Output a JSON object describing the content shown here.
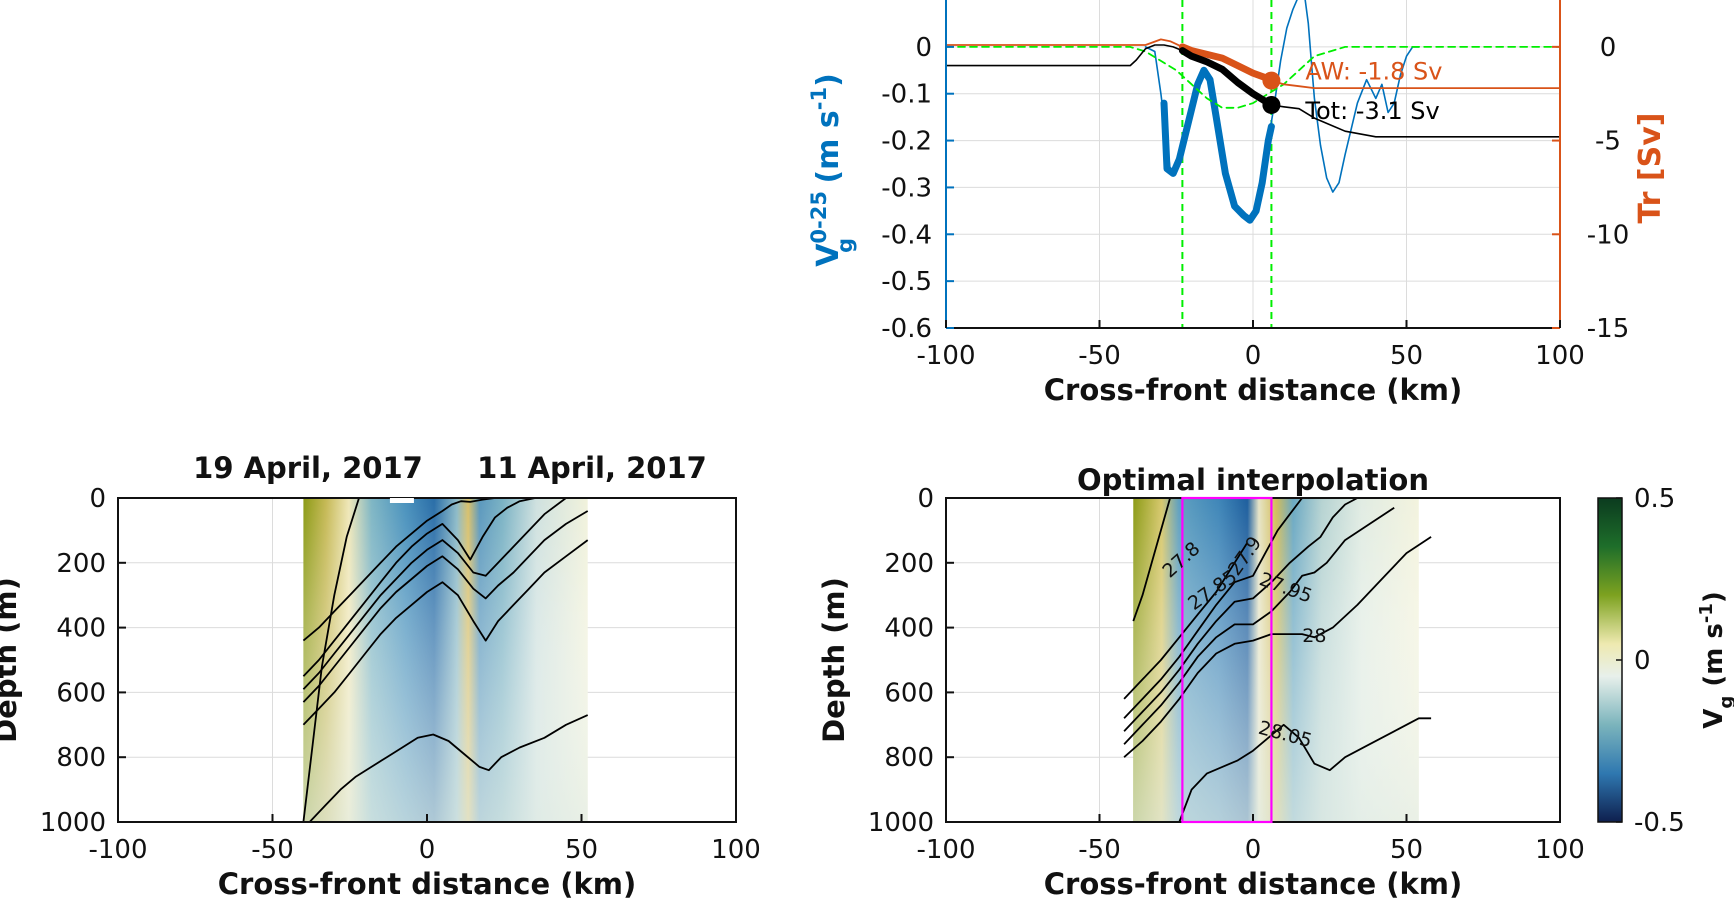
{
  "colors": {
    "blue": "#0072bd",
    "orange": "#d95319",
    "green": "#00ee00",
    "magenta": "#ff00ff",
    "black": "#000000",
    "grid": "#dcdcdc"
  },
  "chart_data": [
    {
      "id": "top",
      "type": "line",
      "xlabel": "Cross-front distance (km)",
      "ylabel_left": "V",
      "ylabel_left_sup": "0-25",
      "ylabel_left_sub": "g",
      "ylabel_left_units": "(m s",
      "ylabel_left_units_sup": "-1",
      "ylabel_left_units_end": ")",
      "ylabel_right": "Tr [Sv]",
      "xlim": [
        -100,
        100
      ],
      "ylim_left": [
        -0.6,
        0.1
      ],
      "ylim_right": [
        -15,
        2.5
      ],
      "xticks": [
        "-100",
        "-50",
        "0",
        "50",
        "100"
      ],
      "yticks_left": [
        "0",
        "-0.1",
        "-0.2",
        "-0.3",
        "-0.4",
        "-0.5",
        "-0.6"
      ],
      "yticks_right": [
        "0",
        "-5",
        "-10",
        "-15"
      ],
      "grid": true,
      "vlines": [
        -23,
        6
      ],
      "series": [
        {
          "axis": "left",
          "style": "thin-blue",
          "x": [
            -35,
            -32,
            -30,
            -27,
            -26,
            -24,
            -21,
            -18,
            -16,
            -14,
            -12,
            -9,
            -6,
            -3,
            -1,
            1,
            3,
            5,
            7,
            9,
            11,
            13,
            15,
            16,
            17,
            18,
            19,
            20,
            22,
            24,
            26,
            28,
            30,
            34,
            37,
            40,
            42,
            44,
            46,
            48,
            50,
            52,
            54
          ],
          "y": [
            0.0,
            -0.01,
            -0.1,
            -0.26,
            -0.27,
            -0.24,
            -0.16,
            -0.08,
            -0.05,
            -0.07,
            -0.15,
            -0.27,
            -0.34,
            -0.36,
            -0.37,
            -0.35,
            -0.29,
            -0.2,
            -0.12,
            -0.03,
            0.04,
            0.08,
            0.11,
            0.12,
            0.1,
            0.05,
            -0.03,
            -0.11,
            -0.21,
            -0.28,
            -0.31,
            -0.29,
            -0.23,
            -0.12,
            -0.07,
            -0.11,
            -0.08,
            -0.14,
            -0.12,
            -0.06,
            -0.02,
            0.0,
            0.0
          ]
        },
        {
          "axis": "left",
          "style": "thick-blue",
          "x": [
            -29,
            -28,
            -26,
            -24,
            -21,
            -18,
            -16,
            -14,
            -12,
            -9,
            -6,
            -3,
            -1,
            1,
            3,
            5,
            6
          ],
          "y": [
            -0.12,
            -0.26,
            -0.27,
            -0.24,
            -0.16,
            -0.08,
            -0.05,
            -0.07,
            -0.15,
            -0.27,
            -0.34,
            -0.36,
            -0.37,
            -0.35,
            -0.29,
            -0.2,
            -0.17
          ]
        },
        {
          "axis": "left",
          "style": "dashed-green",
          "x": [
            -100,
            -40,
            -35,
            -30,
            -25,
            -20,
            -15,
            -10,
            -5,
            0,
            5,
            10,
            15,
            20,
            25,
            30,
            40,
            100
          ],
          "y": [
            0.0,
            0.0,
            -0.01,
            -0.03,
            -0.05,
            -0.08,
            -0.11,
            -0.13,
            -0.13,
            -0.12,
            -0.1,
            -0.08,
            -0.05,
            -0.02,
            -0.01,
            0.0,
            0.0,
            0.0
          ]
        },
        {
          "axis": "right",
          "style": "thin-orange",
          "x": [
            -100,
            -40,
            -35,
            -30,
            -27,
            -23,
            -20,
            -15,
            -10,
            -5,
            0,
            5,
            6,
            8,
            10,
            15,
            20,
            30,
            50,
            100
          ],
          "y": [
            0.1,
            0.1,
            0.1,
            0.4,
            0.3,
            0.0,
            -0.2,
            -0.4,
            -0.6,
            -1.0,
            -1.4,
            -1.7,
            -1.8,
            -1.9,
            -2.0,
            -2.1,
            -2.2,
            -2.2,
            -2.2,
            -2.2
          ]
        },
        {
          "axis": "right",
          "style": "thick-orange",
          "x": [
            -23,
            -20,
            -15,
            -10,
            -5,
            0,
            5,
            6
          ],
          "y": [
            0.0,
            -0.2,
            -0.4,
            -0.6,
            -1.0,
            -1.4,
            -1.7,
            -1.8
          ]
        },
        {
          "axis": "right",
          "style": "thin-black",
          "x": [
            -100,
            -40,
            -38,
            -35,
            -32,
            -29,
            -26,
            -23,
            -20,
            -15,
            -10,
            -5,
            0,
            5,
            6,
            10,
            15,
            20,
            30,
            40,
            50,
            100
          ],
          "y": [
            -1.0,
            -1.0,
            -0.7,
            -0.1,
            0.1,
            0.1,
            0.0,
            -0.2,
            -0.5,
            -0.8,
            -1.2,
            -1.9,
            -2.5,
            -3.0,
            -3.1,
            -3.2,
            -3.3,
            -3.8,
            -4.5,
            -4.8,
            -4.8,
            -4.8
          ]
        },
        {
          "axis": "right",
          "style": "thick-black",
          "x": [
            -23,
            -20,
            -15,
            -10,
            -5,
            0,
            5,
            6
          ],
          "y": [
            -0.2,
            -0.5,
            -0.8,
            -1.2,
            -1.9,
            -2.5,
            -3.0,
            -3.1
          ]
        }
      ],
      "markers": [
        {
          "axis": "right",
          "x": 6,
          "y": -1.8,
          "color": "orange",
          "label": "AW: -1.8 Sv"
        },
        {
          "axis": "right",
          "x": 6,
          "y": -3.1,
          "color": "black",
          "label": "Tot: -3.1 Sv"
        }
      ]
    },
    {
      "id": "bottom-left",
      "type": "heatmap",
      "title_left": "19 April, 2017",
      "title_right": "11 April, 2017",
      "xlabel": "Cross-front distance (km)",
      "ylabel": "Depth (m)",
      "xlim": [
        -100,
        100
      ],
      "ylim": [
        1000,
        0
      ],
      "xticks": [
        "-100",
        "-50",
        "0",
        "50",
        "100"
      ],
      "yticks": [
        "0",
        "200",
        "400",
        "600",
        "800",
        "1000"
      ],
      "data_extent": [
        -40,
        52
      ],
      "contours": [
        {
          "x": [
            -40,
            -37,
            -34,
            -30,
            -26,
            -22
          ],
          "y": [
            1000,
            760,
            520,
            300,
            120,
            0
          ]
        },
        {
          "x": [
            -40,
            -35,
            -30,
            -25,
            -20,
            -15,
            -10,
            -5,
            0,
            5,
            8,
            11,
            14,
            18,
            22,
            26,
            30
          ],
          "y": [
            440,
            400,
            350,
            300,
            250,
            200,
            150,
            110,
            70,
            40,
            20,
            10,
            12,
            5,
            0,
            0,
            0
          ]
        },
        {
          "x": [
            -40,
            -35,
            -30,
            -25,
            -20,
            -15,
            -10,
            -5,
            0,
            5,
            10,
            14,
            18,
            22,
            26,
            30,
            35,
            40
          ],
          "y": [
            550,
            500,
            440,
            380,
            320,
            260,
            200,
            150,
            110,
            80,
            130,
            190,
            120,
            60,
            30,
            10,
            0,
            0
          ]
        },
        {
          "x": [
            -40,
            -35,
            -30,
            -25,
            -20,
            -15,
            -10,
            -5,
            0,
            5,
            10,
            15,
            19,
            23,
            28,
            33,
            38,
            45
          ],
          "y": [
            590,
            540,
            480,
            420,
            360,
            300,
            250,
            200,
            160,
            130,
            170,
            230,
            240,
            200,
            150,
            100,
            50,
            0
          ]
        },
        {
          "x": [
            -40,
            -35,
            -30,
            -25,
            -20,
            -15,
            -10,
            -5,
            0,
            5,
            10,
            15,
            19,
            23,
            28,
            33,
            38,
            45,
            52
          ],
          "y": [
            630,
            580,
            520,
            460,
            400,
            340,
            290,
            250,
            210,
            180,
            220,
            280,
            310,
            270,
            230,
            180,
            130,
            80,
            40
          ]
        },
        {
          "x": [
            -40,
            -35,
            -30,
            -25,
            -20,
            -15,
            -10,
            -5,
            0,
            5,
            10,
            15,
            19,
            23,
            28,
            33,
            38,
            45,
            52
          ],
          "y": [
            700,
            650,
            600,
            540,
            480,
            420,
            370,
            330,
            290,
            260,
            300,
            380,
            440,
            380,
            330,
            280,
            230,
            180,
            130
          ]
        },
        {
          "x": [
            -38,
            -33,
            -28,
            -23,
            -18,
            -13,
            -8,
            -3,
            2,
            7,
            12,
            17,
            20,
            24,
            30,
            38,
            45,
            52
          ],
          "y": [
            1000,
            950,
            900,
            860,
            830,
            800,
            770,
            740,
            730,
            750,
            790,
            830,
            840,
            800,
            770,
            740,
            700,
            670
          ]
        }
      ]
    },
    {
      "id": "bottom-right",
      "type": "heatmap",
      "title": "Optimal interpolation",
      "xlabel": "Cross-front distance (km)",
      "ylabel": "Depth (m)",
      "xlim": [
        -100,
        100
      ],
      "ylim": [
        1000,
        0
      ],
      "xticks": [
        "-100",
        "-50",
        "0",
        "50",
        "100"
      ],
      "yticks": [
        "0",
        "200",
        "400",
        "600",
        "800",
        "1000"
      ],
      "data_extent": [
        -39,
        54
      ],
      "box": {
        "x": [
          -23,
          6
        ],
        "y": [
          0,
          1000
        ]
      },
      "colorbar": {
        "label": "V",
        "label_sub": "g",
        "units": "(m s",
        "units_sup": "-1",
        "units_end": ")",
        "ticks": [
          "0.5",
          "0",
          "-0.5"
        ],
        "range": [
          -0.5,
          0.5
        ]
      },
      "contour_labels": [
        "27.8",
        "27.85",
        "27.9",
        "27.95",
        "28",
        "28.05"
      ],
      "contours": [
        {
          "x": [
            -39,
            -36,
            -33,
            -30,
            -27
          ],
          "y": [
            380,
            300,
            200,
            100,
            0
          ]
        },
        {
          "x": [
            -42,
            -36,
            -30,
            -24,
            -18,
            -12,
            -6,
            -2
          ],
          "y": [
            620,
            560,
            500,
            430,
            360,
            290,
            200,
            140
          ]
        },
        {
          "x": [
            -42,
            -36,
            -30,
            -24,
            -18,
            -12,
            -6,
            0,
            4,
            8,
            12,
            16
          ],
          "y": [
            680,
            620,
            560,
            490,
            410,
            330,
            260,
            240,
            170,
            100,
            50,
            0
          ]
        },
        {
          "x": [
            -42,
            -36,
            -30,
            -24,
            -18,
            -12,
            -6,
            0,
            6,
            12,
            18,
            22,
            26,
            30,
            34
          ],
          "y": [
            720,
            660,
            600,
            530,
            450,
            380,
            320,
            310,
            260,
            200,
            150,
            120,
            60,
            20,
            0
          ]
        },
        {
          "x": [
            -42,
            -36,
            -30,
            -24,
            -18,
            -12,
            -6,
            0,
            6,
            12,
            16,
            20,
            24,
            30,
            38,
            46
          ],
          "y": [
            760,
            700,
            640,
            570,
            490,
            430,
            390,
            390,
            350,
            290,
            240,
            230,
            200,
            130,
            80,
            30
          ]
        },
        {
          "x": [
            -42,
            -36,
            -30,
            -24,
            -18,
            -12,
            -6,
            0,
            6,
            12,
            16,
            20,
            26,
            34,
            42,
            50,
            58
          ],
          "y": [
            800,
            750,
            690,
            620,
            540,
            480,
            450,
            440,
            420,
            420,
            420,
            430,
            400,
            330,
            250,
            170,
            120
          ]
        },
        {
          "x": [
            -24,
            -20,
            -15,
            -10,
            -5,
            0,
            5,
            10,
            15,
            20,
            25,
            30,
            38,
            46,
            54,
            58
          ],
          "y": [
            1000,
            900,
            850,
            830,
            810,
            780,
            740,
            700,
            740,
            820,
            840,
            800,
            760,
            720,
            680,
            680
          ]
        }
      ]
    }
  ]
}
